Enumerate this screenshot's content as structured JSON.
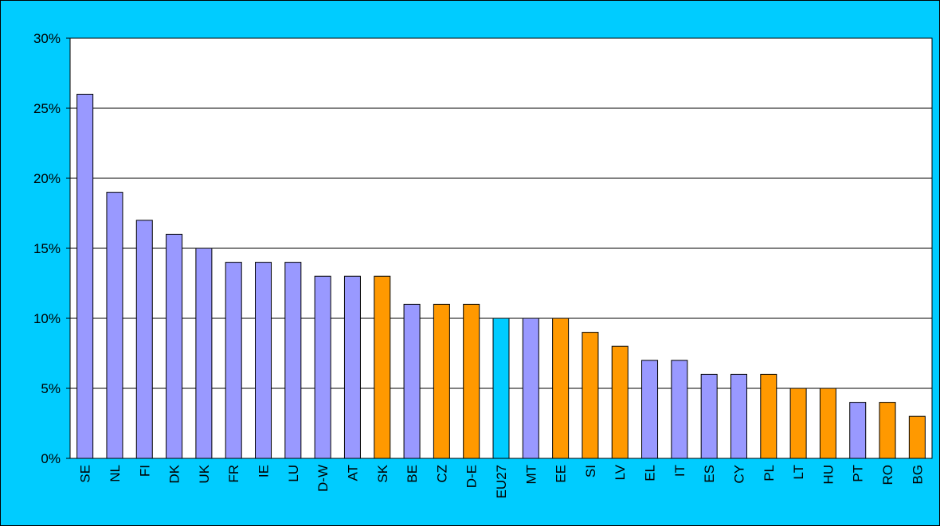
{
  "chart_data": {
    "type": "bar",
    "categories": [
      "SE",
      "NL",
      "FI",
      "DK",
      "UK",
      "FR",
      "IE",
      "LU",
      "D-W",
      "AT",
      "SK",
      "BE",
      "CZ",
      "D-E",
      "EU27",
      "MT",
      "EE",
      "SI",
      "LV",
      "EL",
      "IT",
      "ES",
      "CY",
      "PL",
      "LT",
      "HU",
      "PT",
      "RO",
      "BG"
    ],
    "values": [
      26,
      19,
      17,
      16,
      15,
      14,
      14,
      14,
      13,
      13,
      13,
      11,
      11,
      11,
      10,
      10,
      10,
      9,
      8,
      7,
      7,
      6,
      6,
      6,
      5,
      5,
      4,
      4,
      3
    ],
    "colors": [
      "#9999ff",
      "#9999ff",
      "#9999ff",
      "#9999ff",
      "#9999ff",
      "#9999ff",
      "#9999ff",
      "#9999ff",
      "#9999ff",
      "#9999ff",
      "#ff9900",
      "#9999ff",
      "#ff9900",
      "#ff9900",
      "#00ccff",
      "#9999ff",
      "#ff9900",
      "#ff9900",
      "#ff9900",
      "#9999ff",
      "#9999ff",
      "#9999ff",
      "#9999ff",
      "#ff9900",
      "#ff9900",
      "#ff9900",
      "#9999ff",
      "#ff9900",
      "#ff9900"
    ],
    "ylim": [
      0,
      30
    ],
    "yticks": [
      {
        "value": 0,
        "label": "0%"
      },
      {
        "value": 5,
        "label": "5%"
      },
      {
        "value": 10,
        "label": "10%"
      },
      {
        "value": 15,
        "label": "15%"
      },
      {
        "value": 20,
        "label": "20%"
      },
      {
        "value": 25,
        "label": "25%"
      },
      {
        "value": 30,
        "label": "30%"
      }
    ],
    "grid": true
  }
}
